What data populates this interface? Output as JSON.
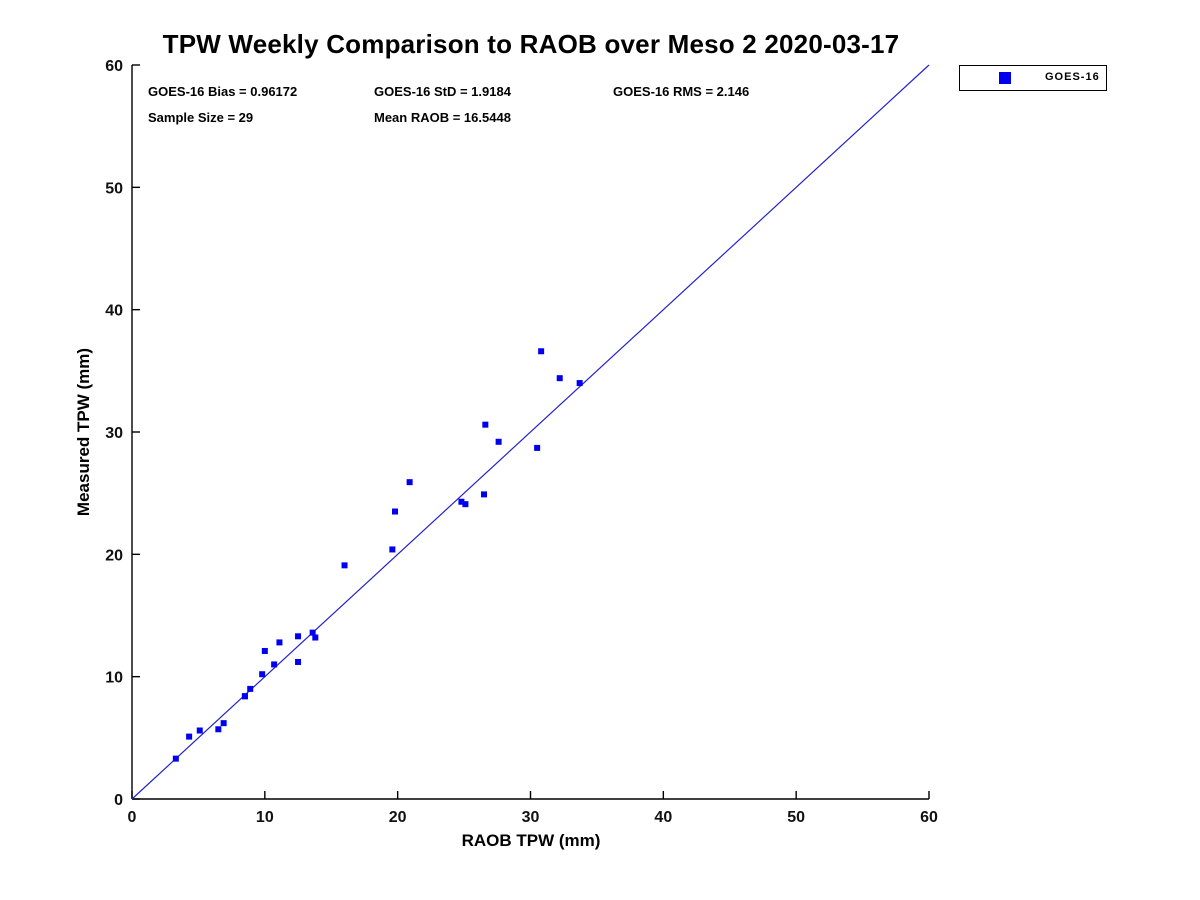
{
  "figure": {
    "title": "TPW Weekly Comparison to RAOB over Meso 2 2020-03-17",
    "background_color": "#ffffff",
    "text_color": "#000000"
  },
  "stats": {
    "bias": "GOES-16 Bias = 0.96172",
    "std": "GOES-16 StD = 1.9184",
    "rms": "GOES-16 RMS = 2.146",
    "sample_size": "Sample Size = 29",
    "mean_raob": "Mean RAOB = 16.5448"
  },
  "legend": {
    "position": "top-right-outside",
    "items": [
      {
        "label": "GOES-16",
        "marker": "square-icon",
        "color": "#0000ee"
      }
    ]
  },
  "chart_data": {
    "type": "scatter",
    "title": "TPW Weekly Comparison to RAOB over Meso 2 2020-03-17",
    "xlabel": "RAOB TPW (mm)",
    "ylabel": "Measured TPW (mm)",
    "xlim": [
      0,
      60
    ],
    "ylim": [
      0,
      60
    ],
    "x_ticks": [
      0,
      10,
      20,
      30,
      40,
      50,
      60
    ],
    "y_ticks": [
      0,
      10,
      20,
      30,
      40,
      50,
      60
    ],
    "grid": false,
    "axis_color": "#000000",
    "series": [
      {
        "name": "GOES-16",
        "marker": "square",
        "color": "#0000ee",
        "marker_size": 6,
        "points": [
          [
            3.3,
            3.3
          ],
          [
            4.3,
            5.1
          ],
          [
            5.1,
            5.6
          ],
          [
            6.5,
            5.7
          ],
          [
            6.9,
            6.2
          ],
          [
            8.5,
            8.4
          ],
          [
            8.5,
            8.4
          ],
          [
            8.9,
            9.0
          ],
          [
            9.8,
            10.2
          ],
          [
            10.0,
            12.1
          ],
          [
            10.7,
            11.0
          ],
          [
            11.1,
            12.8
          ],
          [
            12.5,
            11.2
          ],
          [
            12.5,
            13.3
          ],
          [
            13.6,
            13.6
          ],
          [
            13.8,
            13.2
          ],
          [
            16.0,
            19.1
          ],
          [
            19.6,
            20.4
          ],
          [
            19.8,
            23.5
          ],
          [
            20.9,
            25.9
          ],
          [
            24.8,
            24.3
          ],
          [
            25.1,
            24.1
          ],
          [
            26.5,
            24.9
          ],
          [
            26.6,
            30.6
          ],
          [
            27.6,
            29.2
          ],
          [
            30.5,
            28.7
          ],
          [
            30.8,
            36.6
          ],
          [
            32.2,
            34.4
          ],
          [
            33.7,
            34.0
          ]
        ]
      }
    ],
    "reference_line": {
      "type": "identity",
      "from": [
        0,
        0
      ],
      "to": [
        60,
        60
      ],
      "color": "#2222cc"
    }
  }
}
